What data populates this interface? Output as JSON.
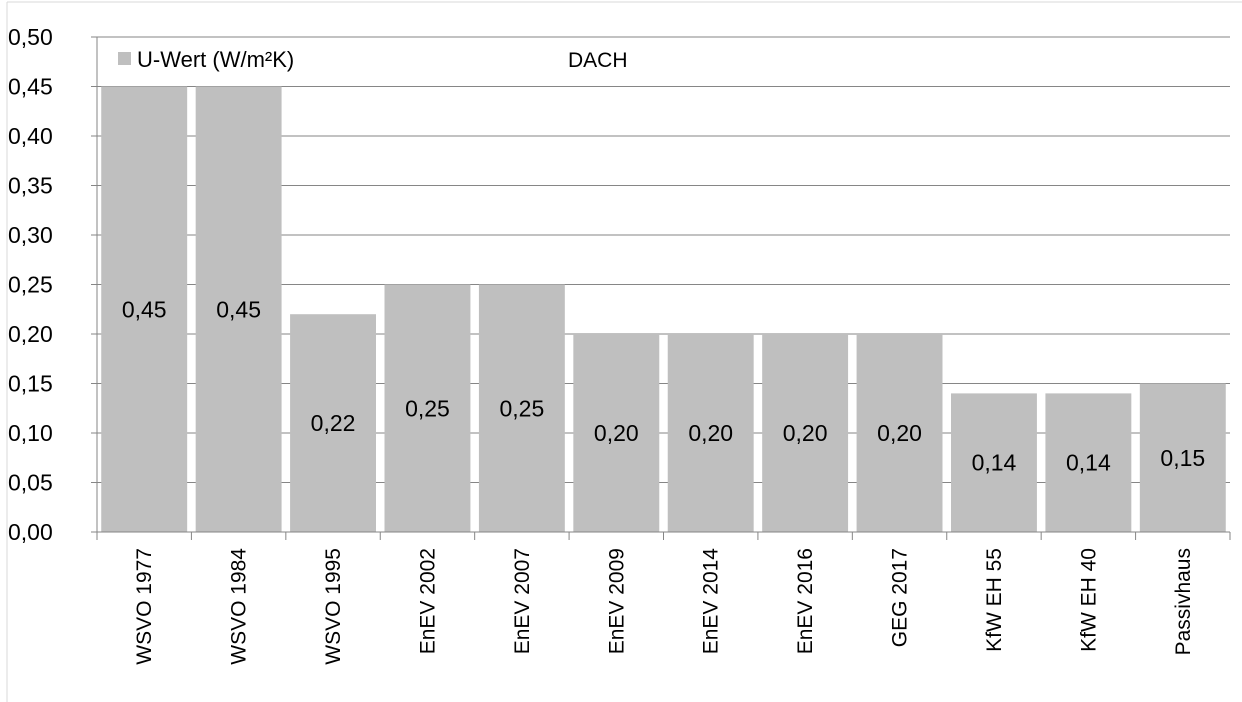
{
  "chart_data": {
    "type": "bar",
    "title": "DACH",
    "categories": [
      "WSVO 1977",
      "WSVO 1984",
      "WSVO 1995",
      "EnEV 2002",
      "EnEV 2007",
      "EnEV 2009",
      "EnEV 2014",
      "EnEV 2016",
      "GEG 2017",
      "KfW EH 55",
      "KfW EH 40",
      "Passivhaus"
    ],
    "series": [
      {
        "name": "U-Wert (W/m²K)",
        "values": [
          0.45,
          0.45,
          0.22,
          0.25,
          0.25,
          0.2,
          0.2,
          0.2,
          0.2,
          0.14,
          0.14,
          0.15
        ],
        "labels": [
          "0,45",
          "0,45",
          "0,22",
          "0,25",
          "0,25",
          "0,20",
          "0,20",
          "0,20",
          "0,20",
          "0,14",
          "0,14",
          "0,15"
        ]
      }
    ],
    "ylim": [
      0,
      0.5
    ],
    "yticks": [
      "0,00",
      "0,05",
      "0,10",
      "0,15",
      "0,20",
      "0,25",
      "0,30",
      "0,35",
      "0,40",
      "0,45",
      "0,50"
    ],
    "xlabel": "",
    "ylabel": "",
    "grid": true,
    "legend": "top-left",
    "colors": {
      "bar": "#bfbfbf",
      "grid": "#868686",
      "axis": "#868686",
      "background": "#ffffff"
    }
  }
}
